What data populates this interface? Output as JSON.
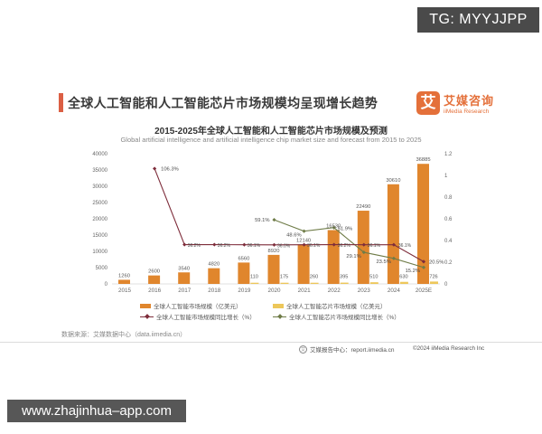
{
  "watermarks": {
    "telegram": "TG: MYYJJPP",
    "website": "www.zhajinhua–app.com"
  },
  "header": {
    "title": "全球人工智能和人工智能芯片市场规模均呈现增长趋势"
  },
  "brand": {
    "logo_glyph": "艾",
    "name_cn": "艾媒咨询",
    "name_en": "iiMedia Research"
  },
  "chart": {
    "title": "2015-2025年全球人工智能和人工智能芯片市场规模及预测",
    "subtitle": "Global artificial intelligence and artificial intelligence chip market size and forecast from 2015 to 2025"
  },
  "chart_data": {
    "type": "combo-bar-line",
    "categories": [
      "2015",
      "2016",
      "2017",
      "2018",
      "2019",
      "2020",
      "2021",
      "2022",
      "2023",
      "2024",
      "2025E"
    ],
    "left_axis": {
      "max": 40000,
      "ticks": [
        0,
        5000,
        10000,
        15000,
        20000,
        25000,
        30000,
        35000,
        40000
      ]
    },
    "right_axis": {
      "max": 1.2,
      "ticks": [
        "0",
        "0.2",
        "0.4",
        "0.6",
        "0.8",
        "1",
        "1.2"
      ]
    },
    "grid": "off",
    "legend_position": "bottom",
    "series": [
      {
        "name": "全球人工智能市场规模（亿美元）",
        "type": "bar",
        "axis": "left",
        "color": "#e0862d",
        "values": [
          1260,
          2600,
          3540,
          4820,
          6560,
          8920,
          12140,
          16530,
          22490,
          30610,
          36885
        ],
        "labels": [
          "1260",
          "2600",
          "3540",
          "4820",
          "6560",
          "8920",
          "12140",
          "16530",
          "22490",
          "30610",
          "36885"
        ]
      },
      {
        "name": "全球人工智能芯片市场规模（亿美元）",
        "type": "bar",
        "axis": "left",
        "color": "#edc75a",
        "values": [
          null,
          null,
          null,
          null,
          110,
          175,
          260,
          395,
          510,
          630,
          726
        ],
        "labels": [
          "",
          "",
          "",
          "",
          "110",
          "175",
          "260",
          "395",
          "510",
          "630",
          "726"
        ]
      },
      {
        "name": "全球人工智能市场规模同比增长（%）",
        "type": "line",
        "axis": "right",
        "color": "#7e2d3b",
        "values": [
          null,
          106.3,
          36.2,
          36.2,
          36.1,
          36.0,
          36.1,
          36.2,
          36.1,
          36.1,
          20.5
        ],
        "labels": [
          "",
          "106.3%",
          "36.2%",
          "36.2%",
          "36.1%",
          "36.0%",
          "36.1%",
          "36.2%",
          "36.1%",
          "36.1%",
          "20.5%"
        ]
      },
      {
        "name": "全球人工智能芯片市场规模同比增长（%）",
        "type": "line",
        "axis": "right",
        "color": "#6f7c48",
        "values": [
          null,
          null,
          null,
          null,
          null,
          59.1,
          48.6,
          51.9,
          29.1,
          23.5,
          15.2
        ],
        "labels": [
          "",
          "",
          "",
          "",
          "",
          "59.1%",
          "48.6%",
          "51.9%",
          "29.1%",
          "23.5%",
          "15.2%"
        ]
      }
    ]
  },
  "footer": {
    "source": "数据来源：艾媒数据中心（data.iimedia.cn）",
    "report_center": "艾媒报告中心：report.iimedia.cn",
    "copyright": "©2024 iiMedia Research Inc"
  }
}
